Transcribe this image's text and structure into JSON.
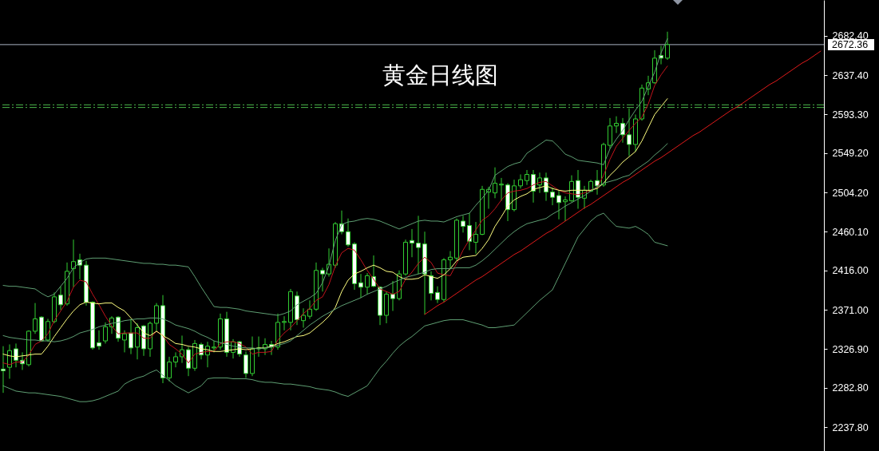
{
  "chart_data": {
    "type": "candlestick",
    "title": "黄金日线图",
    "categories": [
      null,
      null,
      null,
      null,
      null,
      null,
      null,
      null,
      null,
      null,
      null,
      null,
      null,
      null,
      null,
      null,
      null,
      null,
      null,
      null,
      null,
      null,
      null,
      null,
      null,
      null,
      null,
      null,
      null,
      null,
      null,
      null,
      null,
      null,
      null,
      null,
      null,
      null,
      null,
      null,
      null,
      null,
      null,
      null,
      null,
      null,
      null,
      null,
      null,
      null,
      null,
      null,
      null,
      null,
      null,
      null,
      null,
      null,
      null,
      null,
      null,
      null,
      null,
      null,
      null,
      null,
      null,
      null,
      null,
      null,
      null,
      null,
      null,
      null,
      null,
      null,
      null,
      null,
      null,
      null,
      null,
      null,
      null,
      null,
      null,
      null,
      null,
      null,
      null,
      null,
      null,
      null,
      null,
      null,
      null,
      null,
      null,
      null,
      null,
      null,
      null,
      null,
      null,
      null,
      null,
      null,
      null,
      null,
      null,
      null,
      null,
      null,
      null,
      null,
      null,
      null,
      null,
      null,
      null,
      null,
      null,
      null,
      null,
      null,
      null,
      null,
      null,
      null,
      null
    ],
    "ohlc": [
      [
        2304,
        2330,
        2277,
        2302
      ],
      [
        2306,
        2332,
        2293,
        2325
      ],
      [
        2327,
        2333,
        2306,
        2314
      ],
      [
        2314,
        2323,
        2303,
        2310
      ],
      [
        2309,
        2348,
        2307,
        2347
      ],
      [
        2347,
        2379,
        2344,
        2361
      ],
      [
        2363,
        2364,
        2335,
        2336
      ],
      [
        2337,
        2361,
        2335,
        2358
      ],
      [
        2358,
        2391,
        2356,
        2386
      ],
      [
        2388,
        2398,
        2371,
        2377
      ],
      [
        2378,
        2425,
        2376,
        2415
      ],
      [
        2418,
        2451,
        2397,
        2426
      ],
      [
        2428,
        2435,
        2406,
        2422
      ],
      [
        2422,
        2427,
        2376,
        2380
      ],
      [
        2380,
        2381,
        2326,
        2328
      ],
      [
        2334,
        2348,
        2326,
        2330
      ],
      [
        2336,
        2357,
        2333,
        2352
      ],
      [
        2352,
        2364,
        2344,
        2362
      ],
      [
        2363,
        2364,
        2335,
        2339
      ],
      [
        2337,
        2348,
        2323,
        2344
      ],
      [
        2345,
        2361,
        2321,
        2328
      ],
      [
        2329,
        2356,
        2315,
        2351
      ],
      [
        2353,
        2354,
        2319,
        2327
      ],
      [
        2327,
        2358,
        2318,
        2356
      ],
      [
        2356,
        2379,
        2347,
        2376
      ],
      [
        2376,
        2388,
        2288,
        2294
      ],
      [
        2294,
        2318,
        2290,
        2312
      ],
      [
        2312,
        2323,
        2306,
        2318
      ],
      [
        2318,
        2342,
        2311,
        2326
      ],
      [
        2326,
        2329,
        2296,
        2305
      ],
      [
        2305,
        2337,
        2302,
        2333
      ],
      [
        2332,
        2334,
        2315,
        2320
      ],
      [
        2320,
        2335,
        2306,
        2330
      ],
      [
        2328,
        2336,
        2323,
        2329
      ],
      [
        2329,
        2367,
        2326,
        2361
      ],
      [
        2361,
        2369,
        2318,
        2323
      ],
      [
        2323,
        2338,
        2316,
        2335
      ],
      [
        2335,
        2336,
        2318,
        2321
      ],
      [
        2320,
        2324,
        2294,
        2299
      ],
      [
        2299,
        2341,
        2296,
        2327
      ],
      [
        2327,
        2341,
        2318,
        2328
      ],
      [
        2327,
        2339,
        2320,
        2332
      ],
      [
        2332,
        2336,
        2320,
        2329
      ],
      [
        2329,
        2367,
        2326,
        2357
      ],
      [
        2357,
        2364,
        2348,
        2358
      ],
      [
        2357,
        2395,
        2348,
        2392
      ],
      [
        2387,
        2392,
        2354,
        2360
      ],
      [
        2359,
        2373,
        2351,
        2365
      ],
      [
        2364,
        2382,
        2361,
        2372
      ],
      [
        2372,
        2425,
        2370,
        2416
      ],
      [
        2416,
        2419,
        2392,
        2412
      ],
      [
        2412,
        2441,
        2409,
        2423
      ],
      [
        2422,
        2471,
        2419,
        2469
      ],
      [
        2469,
        2484,
        2457,
        2460
      ],
      [
        2460,
        2475,
        2443,
        2445
      ],
      [
        2446,
        2448,
        2394,
        2401
      ],
      [
        2402,
        2412,
        2385,
        2397
      ],
      [
        2397,
        2413,
        2389,
        2410
      ],
      [
        2409,
        2433,
        2397,
        2398
      ],
      [
        2397,
        2398,
        2354,
        2365
      ],
      [
        2365,
        2392,
        2356,
        2389
      ],
      [
        2389,
        2404,
        2370,
        2384
      ],
      [
        2384,
        2416,
        2382,
        2412
      ],
      [
        2412,
        2451,
        2410,
        2448
      ],
      [
        2450,
        2463,
        2431,
        2447
      ],
      [
        2447,
        2478,
        2412,
        2442
      ],
      [
        2446,
        2460,
        2366,
        2412
      ],
      [
        2410,
        2415,
        2382,
        2390
      ],
      [
        2391,
        2398,
        2379,
        2383
      ],
      [
        2383,
        2430,
        2380,
        2428
      ],
      [
        2428,
        2438,
        2418,
        2431
      ],
      [
        2430,
        2475,
        2427,
        2473
      ],
      [
        2472,
        2478,
        2459,
        2466
      ],
      [
        2467,
        2481,
        2439,
        2449
      ],
      [
        2448,
        2471,
        2435,
        2457
      ],
      [
        2457,
        2512,
        2456,
        2508
      ],
      [
        2505,
        2511,
        2486,
        2508
      ],
      [
        2504,
        2533,
        2498,
        2515
      ],
      [
        2513,
        2521,
        2495,
        2514
      ],
      [
        2513,
        2515,
        2472,
        2485
      ],
      [
        2485,
        2519,
        2483,
        2512
      ],
      [
        2512,
        2525,
        2509,
        2519
      ],
      [
        2518,
        2530,
        2513,
        2525
      ],
      [
        2525,
        2530,
        2493,
        2506
      ],
      [
        2513,
        2527,
        2504,
        2521
      ],
      [
        2521,
        2527,
        2495,
        2505
      ],
      [
        2505,
        2510,
        2490,
        2499
      ],
      [
        2501,
        2507,
        2474,
        2493
      ],
      [
        2494,
        2500,
        2472,
        2496
      ],
      [
        2495,
        2524,
        2494,
        2517
      ],
      [
        2518,
        2530,
        2486,
        2499
      ],
      [
        2498,
        2512,
        2486,
        2507
      ],
      [
        2506,
        2519,
        2505,
        2517
      ],
      [
        2518,
        2530,
        2502,
        2512
      ],
      [
        2513,
        2561,
        2511,
        2559
      ],
      [
        2558,
        2589,
        2554,
        2580
      ],
      [
        2580,
        2591,
        2572,
        2583
      ],
      [
        2583,
        2589,
        2561,
        2570
      ],
      [
        2570,
        2600,
        2546,
        2559
      ],
      [
        2559,
        2593,
        2551,
        2588
      ],
      [
        2588,
        2627,
        2586,
        2623
      ],
      [
        2622,
        2637,
        2615,
        2629
      ],
      [
        2629,
        2666,
        2628,
        2657
      ],
      [
        2660,
        2671,
        2650,
        2657
      ],
      [
        2657,
        2687,
        2655,
        2672.36
      ],
      null,
      null,
      null,
      null,
      null,
      null,
      null,
      null,
      null,
      null,
      null,
      null,
      null,
      null,
      null,
      null,
      null,
      null,
      null,
      null,
      null,
      null,
      null,
      null
    ],
    "color": "#32cd32",
    "colors": [
      "#ffffff",
      "#000000",
      "#ffffff",
      "#ffffff",
      "#000000",
      "#000000",
      "#ffffff",
      "#000000",
      "#000000",
      "#ffffff",
      "#000000",
      "#000000",
      "#ffffff",
      "#ffffff",
      "#ffffff",
      "#ffffff",
      "#000000",
      "#000000",
      "#ffffff",
      "#000000",
      "#ffffff",
      "#000000",
      "#ffffff",
      "#000000",
      "#000000",
      "#ffffff",
      "#000000",
      "#000000",
      "#000000",
      "#ffffff",
      "#000000",
      "#ffffff",
      "#000000",
      "#000000",
      "#000000",
      "#ffffff",
      "#000000",
      "#ffffff",
      "#ffffff",
      "#000000",
      "#000000",
      "#000000",
      "#ffffff",
      "#000000",
      "#000000",
      "#000000",
      "#ffffff",
      "#000000",
      "#000000",
      "#000000",
      "#ffffff",
      "#000000",
      "#000000",
      "#ffffff",
      "#ffffff",
      "#ffffff",
      "#ffffff",
      "#000000",
      "#ffffff",
      "#ffffff",
      "#000000",
      "#ffffff",
      "#000000",
      "#000000",
      "#ffffff",
      "#ffffff",
      "#ffffff",
      "#ffffff",
      "#ffffff",
      "#000000",
      "#000000",
      "#000000",
      "#ffffff",
      "#ffffff",
      "#000000",
      "#000000",
      "#000000",
      "#000000",
      "#000000",
      "#ffffff",
      "#000000",
      "#000000",
      "#000000",
      "#ffffff",
      "#000000",
      "#ffffff",
      "#ffffff",
      "#ffffff",
      "#000000",
      "#000000",
      "#ffffff",
      "#000000",
      "#000000",
      "#ffffff",
      "#000000",
      "#000000",
      "#000000",
      "#ffffff",
      "#ffffff",
      "#000000",
      "#000000",
      "#000000",
      "#000000",
      "#ffffff",
      "#000000",
      null,
      null,
      null,
      null,
      null,
      null,
      null,
      null,
      null,
      null,
      null,
      null,
      null,
      null,
      null,
      null,
      null,
      null,
      null,
      null,
      null,
      null,
      null,
      null
    ],
    "series": [
      {
        "type": "line",
        "color": "#c0141c",
        "values": [
          2311,
          2309,
          2312,
          2312,
          2320,
          2332,
          2336,
          2344,
          2359,
          2370,
          2381,
          2397,
          2405,
          2403,
          2389,
          2377,
          2364,
          2353,
          2344,
          2345,
          2345,
          2345,
          2339,
          2339,
          2347,
          2342,
          2332,
          2327,
          2321,
          2311,
          2321,
          2323,
          2324,
          2324,
          2333,
          2335,
          2335,
          2333,
          2329,
          2321,
          2323,
          2323,
          2324,
          2337,
          2345,
          2351,
          2359,
          2367,
          2373,
          2382,
          2386,
          2400,
          2421,
          2436,
          2441,
          2439,
          2428,
          2416,
          2406,
          2395,
          2392,
          2389,
          2392,
          2406,
          2414,
          2424,
          2431,
          2425,
          2413,
          2411,
          2410,
          2424,
          2439,
          2451,
          2462,
          2473,
          2478,
          2486,
          2496,
          2504,
          2506,
          2507,
          2509,
          2513,
          2516,
          2517,
          2512,
          2507,
          2504,
          2503,
          2502,
          2504,
          2507,
          2510,
          2524,
          2542,
          2557,
          2566,
          2575,
          2583,
          2590,
          2605,
          2626,
          2638,
          2648,
          null,
          null,
          null,
          null,
          null,
          null,
          null,
          null,
          null,
          null,
          null,
          null,
          null,
          null,
          null,
          null,
          null,
          null,
          null,
          null,
          null,
          null,
          null,
          null
        ]
      },
      {
        "type": "line",
        "color": "#ffff80",
        "values": [
          2321,
          2319,
          2318,
          2319,
          2320,
          2321,
          2321,
          2330,
          2341,
          2351,
          2361,
          2370,
          2377,
          2380,
          2379,
          2378,
          2379,
          2379,
          2374,
          2370,
          2362,
          2354,
          2345,
          2342,
          2347,
          2342,
          2338,
          2333,
          2332,
          2330,
          2329,
          2327,
          2326,
          2324,
          2324,
          2325,
          2326,
          2327,
          2326,
          2327,
          2328,
          2328,
          2330,
          2333,
          2335,
          2338,
          2341,
          2342,
          2345,
          2351,
          2357,
          2364,
          2374,
          2392,
          2405,
          2412,
          2415,
          2419,
          2422,
          2419,
          2415,
          2414,
          2409,
          2406,
          2406,
          2407,
          2411,
          2409,
          2407,
          2411,
          2418,
          2427,
          2431,
          2432,
          2433,
          2441,
          2451,
          2466,
          2477,
          2489,
          2496,
          2500,
          2503,
          2508,
          2510,
          2512,
          2509,
          2507,
          2506,
          2507,
          2507,
          2507,
          2507,
          2509,
          2515,
          2524,
          2531,
          2539,
          2545,
          2551,
          2563,
          2578,
          2593,
          2602,
          2611,
          null,
          null,
          null,
          null,
          null,
          null,
          null,
          null,
          null,
          null,
          null,
          null,
          null,
          null,
          null,
          null,
          null,
          null,
          null,
          null,
          null,
          null,
          null,
          null
        ]
      },
      {
        "type": "line",
        "color": "#5f9f73",
        "values": [
          2399,
          2398,
          2398,
          2397,
          2396,
          2395,
          2390,
          2386,
          2389,
          2398,
          2407,
          2419,
          2425,
          2429,
          2430,
          2430,
          2430,
          2429,
          2428,
          2427,
          2426,
          2425,
          2424,
          2424,
          2423,
          2423,
          2422,
          2422,
          2421,
          2420,
          2409,
          2397,
          2386,
          2375,
          2374,
          2374,
          2373,
          2372,
          2370,
          2369,
          2368,
          2367,
          2366,
          2365,
          2367,
          2370,
          2377,
          2381,
          2385,
          2390,
          2402,
          2421,
          2450,
          2468,
          2471,
          2472,
          2474,
          2475,
          2474,
          2472,
          2469,
          2466,
          2463,
          2466,
          2469,
          2472,
          2473,
          2472,
          2472,
          2471,
          2474,
          2477,
          2479,
          2481,
          2490,
          2498,
          2507,
          2524,
          2529,
          2534,
          2537,
          2539,
          2549,
          2554,
          2559,
          2564,
          2563,
          2556,
          2548,
          2545,
          2541,
          2540,
          2539,
          2538,
          2536,
          2554,
          2565,
          2575,
          2587,
          2598,
          2608,
          2625,
          2641,
          2663,
          2679,
          null,
          null,
          null,
          null,
          null,
          null,
          null,
          null,
          null,
          null,
          null,
          null,
          null,
          null,
          null,
          null,
          null,
          null,
          null,
          null,
          null,
          null,
          null,
          null
        ]
      },
      {
        "type": "line",
        "color": "#5f9f73",
        "values": [
          2342,
          2340,
          2339,
          2338,
          2337,
          2337,
          2336,
          2336,
          2335,
          2336,
          2338,
          2341,
          2345,
          2347,
          2349,
          2352,
          2354,
          2356,
          2357,
          2359,
          2360,
          2361,
          2361,
          2362,
          2362,
          2361,
          2358,
          2354,
          2352,
          2350,
          2347,
          2343,
          2340,
          2336,
          2334,
          2332,
          2330,
          2329,
          2328,
          2328,
          2327,
          2328,
          2329,
          2331,
          2333,
          2336,
          2342,
          2348,
          2354,
          2359,
          2364,
          2368,
          2372,
          2376,
          2379,
          2382,
          2385,
          2389,
          2392,
          2395,
          2398,
          2402,
          2405,
          2408,
          2410,
          2412,
          2414,
          2417,
          2418,
          2418,
          2418,
          2419,
          2419,
          2419,
          2422,
          2427,
          2433,
          2440,
          2447,
          2454,
          2460,
          2465,
          2469,
          2471,
          2473,
          2475,
          2480,
          2484,
          2489,
          2493,
          2497,
          2501,
          2506,
          2511,
          2515,
          2517,
          2519,
          2522,
          2524,
          2530,
          2535,
          2540,
          2547,
          2553,
          2560,
          null,
          null,
          null,
          null,
          null,
          null,
          null,
          null,
          null,
          null,
          null,
          null,
          null,
          null,
          null,
          null,
          null,
          null,
          null,
          null,
          null,
          null,
          null,
          null
        ]
      },
      {
        "type": "line",
        "color": "#5f9f73",
        "values": [
          2285,
          2282,
          2279,
          2278,
          2277,
          2277,
          2276,
          2275,
          2274,
          2273,
          2271,
          2269,
          2267,
          2267,
          2268,
          2270,
          2273,
          2276,
          2279,
          2287,
          2291,
          2294,
          2296,
          2300,
          2303,
          2297,
          2291,
          2285,
          2281,
          2277,
          2281,
          2285,
          2293,
          2294,
          2294,
          2294,
          2293,
          2293,
          2293,
          2292,
          2290,
          2289,
          2289,
          2288,
          2287,
          2287,
          2286,
          2285,
          2284,
          2282,
          2281,
          2280,
          2278,
          2275,
          2273,
          2277,
          2281,
          2285,
          2295,
          2305,
          2313,
          2322,
          2330,
          2336,
          2341,
          2347,
          2353,
          2355,
          2357,
          2359,
          2360,
          2360,
          2360,
          2358,
          2356,
          2354,
          2351,
          2351,
          2352,
          2353,
          2354,
          2361,
          2368,
          2375,
          2382,
          2388,
          2394,
          2409,
          2424,
          2439,
          2454,
          2463,
          2472,
          2478,
          2481,
          2473,
          2466,
          2465,
          2464,
          2466,
          2462,
          2457,
          2448,
          2446,
          2444,
          null,
          null,
          null,
          null,
          null,
          null,
          null,
          null,
          null,
          null,
          null,
          null,
          null,
          null,
          null,
          null,
          null,
          null,
          null,
          null,
          null,
          null,
          null,
          null
        ]
      },
      {
        "type": "line",
        "color": "#e01b1b",
        "values": [
          null,
          null,
          null,
          null,
          null,
          null,
          null,
          null,
          null,
          null,
          null,
          null,
          null,
          null,
          null,
          null,
          null,
          null,
          null,
          null,
          null,
          null,
          null,
          null,
          null,
          null,
          null,
          null,
          null,
          null,
          null,
          null,
          null,
          null,
          null,
          null,
          null,
          null,
          null,
          null,
          null,
          null,
          null,
          null,
          null,
          null,
          null,
          null,
          null,
          null,
          null,
          null,
          null,
          null,
          null,
          null,
          null,
          null,
          null,
          null,
          null,
          null,
          null,
          null,
          null,
          null,
          2366,
          2371,
          2376,
          2380,
          2385,
          2390,
          2395,
          2400,
          2405,
          2409,
          2414,
          2419,
          2424,
          2429,
          2434,
          2438,
          2443,
          2448,
          2453,
          2458,
          2462,
          2467,
          2472,
          2477,
          2482,
          2487,
          2491,
          2496,
          2501,
          2506,
          2511,
          2516,
          2520,
          2525,
          2530,
          2535,
          2540,
          2544,
          2549,
          2554,
          2559,
          2564,
          2569,
          2573,
          2578,
          2583,
          2588,
          2593,
          2598,
          2602,
          2607,
          2612,
          2617,
          2622,
          2627,
          2631,
          2636,
          2641,
          2646,
          2651,
          2655,
          2660,
          2665
        ]
      }
    ],
    "ylim": [
      2211,
      2723
    ],
    "yticks": [
      {
        "value": 2682.4,
        "label": "2682.40"
      },
      {
        "value": 2637.4,
        "label": "2637.40"
      },
      {
        "value": 2593.3,
        "label": "2593.30"
      },
      {
        "value": 2549.2,
        "label": "2549.20"
      },
      {
        "value": 2504.2,
        "label": "2504.20"
      },
      {
        "value": 2460.1,
        "label": "2460.10"
      },
      {
        "value": 2416,
        "label": "2416.00"
      },
      {
        "value": 2371,
        "label": "2371.00"
      },
      {
        "value": 2326.9,
        "label": "2326.90"
      },
      {
        "value": 2282.8,
        "label": "2282.80"
      },
      {
        "value": 2237.8,
        "label": "2237.80"
      }
    ],
    "ref_lines": [
      {
        "axis": "y",
        "value": 2672.36,
        "label": "2672.36",
        "color": "#a9b2c3"
      },
      {
        "axis": "y",
        "value": 2604,
        "color": "#4cb84c",
        "line_style": "dashed"
      },
      {
        "axis": "y",
        "value": 2601,
        "color": "#4cb84c",
        "line_style": "dashed"
      }
    ],
    "tick_labels": "y"
  }
}
